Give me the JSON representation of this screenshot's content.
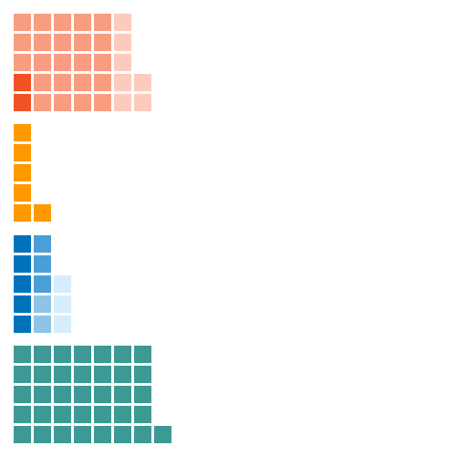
{
  "chart_data": {
    "type": "waffle",
    "title": "",
    "legend": "none",
    "grid": false,
    "cells_per_column": 5,
    "groups": [
      {
        "segments": [
          {
            "count": 2,
            "color": "#f05223"
          },
          {
            "count": 23,
            "color": "#f89d80"
          },
          {
            "count": 7,
            "color": "#fdcbbd"
          }
        ]
      },
      {
        "segments": [
          {
            "count": 6,
            "color": "#ff9900"
          }
        ]
      },
      {
        "segments": [
          {
            "count": 5,
            "color": "#0072bc"
          },
          {
            "count": 2,
            "color": "#8ec4e8"
          },
          {
            "count": 3,
            "color": "#4a9fd8"
          },
          {
            "count": 3,
            "color": "#d5edfc"
          }
        ]
      },
      {
        "segments": [
          {
            "count": 36,
            "color": "#3d9994"
          }
        ]
      }
    ]
  }
}
